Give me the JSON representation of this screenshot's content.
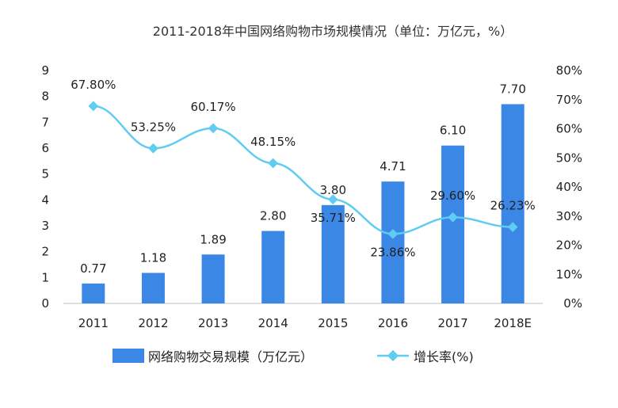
{
  "chart_data": {
    "type": "bar+line",
    "title": "2011-2018年中国网络购物市场规模情况（单位：万亿元，%）",
    "categories": [
      "2011",
      "2012",
      "2013",
      "2014",
      "2015",
      "2016",
      "2017",
      "2018E"
    ],
    "series": [
      {
        "name": "网络购物交易规模（万亿元）",
        "type": "bar",
        "axis": "left",
        "values": [
          0.77,
          1.18,
          1.89,
          2.8,
          3.8,
          4.71,
          6.1,
          7.7
        ],
        "labels": [
          "0.77",
          "1.18",
          "1.89",
          "2.80",
          "3.80",
          "4.71",
          "6.10",
          "7.70"
        ]
      },
      {
        "name": "增长率(%)",
        "type": "line",
        "axis": "right",
        "values": [
          67.8,
          53.25,
          60.17,
          48.15,
          35.71,
          23.86,
          29.6,
          26.23
        ],
        "labels": [
          "67.80%",
          "53.25%",
          "60.17%",
          "48.15%",
          "35.71%",
          "23.86%",
          "29.60%",
          "26.23%"
        ]
      }
    ],
    "y_left": {
      "min": 0,
      "max": 9,
      "step": 1,
      "ticks": [
        "0",
        "1",
        "2",
        "3",
        "4",
        "5",
        "6",
        "7",
        "8",
        "9"
      ]
    },
    "y_right": {
      "min": 0,
      "max": 80,
      "step": 10,
      "ticks": [
        "0%",
        "10%",
        "20%",
        "30%",
        "40%",
        "50%",
        "60%",
        "70%",
        "80%"
      ]
    },
    "legend_position": "bottom-center",
    "grid": false
  },
  "colors": {
    "bar": "#3b87e6",
    "line": "#5fccf2",
    "axis": "#bfbfbf",
    "text": "#222222"
  }
}
